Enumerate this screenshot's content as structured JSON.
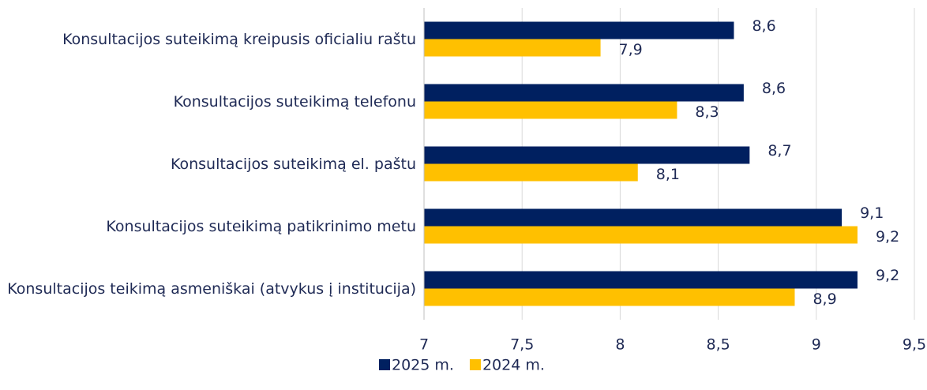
{
  "chart_data": {
    "type": "bar",
    "orientation": "horizontal",
    "categories": [
      "Konsultacijos suteikimą kreipusis oficialiu raštu",
      "Konsultacijos suteikimą telefonu",
      "Konsultacijos suteikimą el. paštu",
      "Konsultacijos suteikimą patikrinimo metu",
      "Konsultacijos teikimą asmeniškai (atvykus į institucija)"
    ],
    "series": [
      {
        "name": "2025 m.",
        "color": "#002060",
        "values": [
          8.58,
          8.63,
          8.66,
          9.13,
          9.21
        ],
        "value_labels": [
          "8,6",
          "8,6",
          "8,7",
          "9,1",
          "9,2"
        ]
      },
      {
        "name": "2024 m.",
        "color": "#ffc000",
        "values": [
          7.9,
          8.29,
          8.09,
          9.21,
          8.89
        ],
        "value_labels": [
          "7,9",
          "8,3",
          "8,1",
          "9,2",
          "8,9"
        ]
      }
    ],
    "xlim": [
      7,
      9.5
    ],
    "xticks": [
      7,
      {
        "value": 7.5,
        "label": "7,5"
      },
      8,
      {
        "value": 8.5,
        "label": "8,5"
      },
      9,
      {
        "value": 9.5,
        "label": "9,5"
      }
    ],
    "grid": true,
    "legend": "bottom"
  }
}
